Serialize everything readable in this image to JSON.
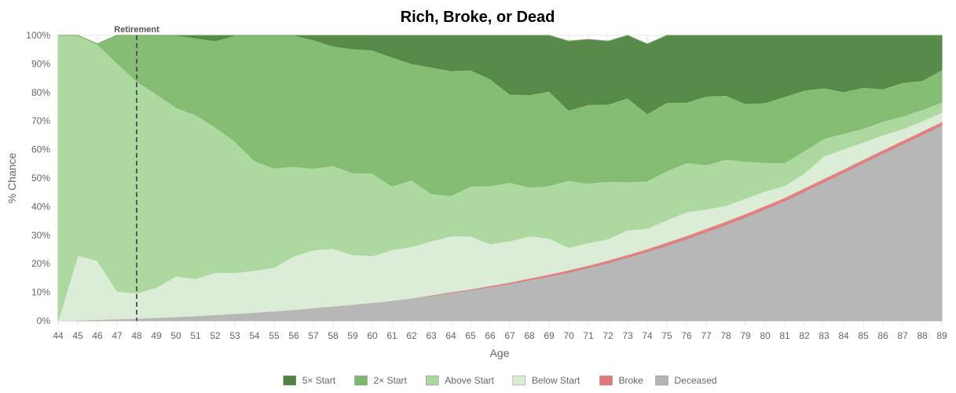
{
  "chart_data": {
    "type": "area",
    "title": "Rich, Broke, or Dead",
    "xlabel": "Age",
    "ylabel": "% Chance",
    "x": [
      44,
      45,
      46,
      47,
      48,
      49,
      50,
      51,
      52,
      53,
      54,
      55,
      56,
      57,
      58,
      59,
      60,
      61,
      62,
      63,
      64,
      65,
      66,
      67,
      68,
      69,
      70,
      71,
      72,
      73,
      74,
      75,
      76,
      77,
      78,
      79,
      80,
      81,
      82,
      83,
      84,
      85,
      86,
      87,
      88,
      89
    ],
    "ylim": [
      0,
      100
    ],
    "yticks": [
      "0%",
      "10%",
      "20%",
      "30%",
      "40%",
      "50%",
      "60%",
      "70%",
      "80%",
      "90%",
      "100%"
    ],
    "grid": true,
    "legend_position": "bottom",
    "stacked": true,
    "series": [
      {
        "name": "Deceased",
        "color": "#b3b3b3",
        "values": [
          0,
          0.2,
          0.4,
          0.6,
          0.8,
          1.1,
          1.4,
          1.7,
          2.1,
          2.5,
          2.9,
          3.4,
          3.9,
          4.5,
          5.1,
          5.7,
          6.4,
          7.1,
          7.9,
          8.8,
          9.8,
          10.8,
          11.9,
          13.0,
          14.3,
          15.6,
          17.0,
          18.6,
          20.3,
          22.2,
          24.2,
          26.4,
          28.7,
          31.1,
          33.6,
          36.3,
          39.1,
          42.0,
          45.3,
          48.6,
          51.9,
          55.3,
          58.6,
          61.9,
          65.2,
          68.5
        ]
      },
      {
        "name": "Broke",
        "color": "#e07a7a",
        "values": [
          0,
          0,
          0,
          0,
          0,
          0,
          0,
          0,
          0,
          0,
          0,
          0,
          0,
          0,
          0,
          0,
          0,
          0,
          0,
          0.2,
          0.3,
          0.3,
          0.4,
          0.5,
          0.6,
          0.7,
          0.8,
          0.8,
          0.9,
          1.0,
          1.0,
          1.1,
          1.1,
          1.2,
          1.2,
          1.2,
          1.2,
          1.2,
          1.2,
          1.2,
          1.2,
          1.2,
          1.2,
          1.2,
          1.2,
          1.2
        ]
      },
      {
        "name": "Below Start",
        "color": "#d9ecd4",
        "values": [
          0,
          22.7,
          20.7,
          9.8,
          8.9,
          10.6,
          14.3,
          13.1,
          14.8,
          14.4,
          14.7,
          15.3,
          18.8,
          20.3,
          20.2,
          17.5,
          16.4,
          17.8,
          18.1,
          18.9,
          19.6,
          18.6,
          14.7,
          14.5,
          14.8,
          12.6,
          7.9,
          7.9,
          7.5,
          8.6,
          7.2,
          7.8,
          8.4,
          6.8,
          5.6,
          5.4,
          5.1,
          4.2,
          5.2,
          7.9,
          7.1,
          6.1,
          5.3,
          4.1,
          3.6,
          3.3
        ]
      },
      {
        "name": "Above Start",
        "color": "#a9d79c",
        "values": [
          100,
          77.1,
          75.9,
          79.9,
          74.3,
          67.8,
          59.1,
          57.4,
          51.0,
          46.0,
          38.5,
          34.8,
          31.4,
          28.6,
          29.1,
          28.7,
          28.9,
          22.3,
          23.4,
          16.7,
          14.1,
          17.5,
          20.3,
          20.5,
          17.1,
          18.4,
          23.5,
          20.9,
          20.2,
          16.9,
          16.6,
          17.3,
          17.2,
          15.6,
          16.2,
          13.0,
          10.0,
          8.0,
          7.9,
          6.2,
          5.5,
          4.8,
          4.8,
          4.5,
          4.0,
          3.6
        ]
      },
      {
        "name": "2× Start",
        "color": "#7eb96d",
        "values": [
          0,
          0,
          0,
          9.7,
          16.0,
          20.5,
          25.2,
          26.9,
          30.2,
          37.4,
          43.9,
          46.5,
          45.9,
          45.1,
          41.8,
          43.4,
          43.2,
          45.2,
          40.7,
          44.3,
          43.8,
          40.7,
          37.5,
          30.9,
          32.4,
          33.2,
          24.6,
          27.6,
          27.0,
          29.4,
          23.6,
          23.9,
          21.2,
          24.0,
          22.4,
          20.2,
          21.0,
          23.2,
          21.2,
          17.7,
          14.6,
          14.4,
          11.4,
          11.8,
          10.2,
          11.4
        ]
      },
      {
        "name": "5× Start",
        "color": "#4f8440",
        "values": [
          0,
          0,
          0,
          0,
          0,
          0,
          0,
          0.9,
          1.9,
          1.7,
          0,
          0,
          0,
          1.5,
          3.8,
          4.7,
          5.1,
          7.6,
          9.9,
          11.1,
          12.4,
          12.1,
          15.2,
          20.6,
          20.8,
          19.5,
          24.2,
          22.8,
          22.1,
          22.9,
          24.4,
          23.5,
          23.4,
          21.3,
          21.0,
          23.9,
          23.6,
          21.4,
          19.2,
          18.4,
          19.7,
          18.2,
          18.7,
          16.5,
          15.8,
          12.0
        ]
      }
    ],
    "annotation": {
      "label": "Retirement",
      "x": 48
    }
  }
}
